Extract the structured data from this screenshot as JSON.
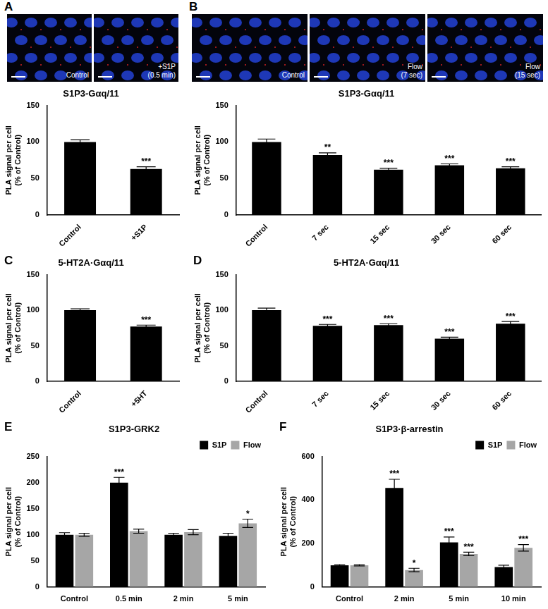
{
  "image_panels": [
    {
      "panel": "A",
      "images": [
        {
          "caption": [
            "Control"
          ]
        },
        {
          "caption": [
            "+S1P",
            "(0.5 min)"
          ]
        }
      ]
    },
    {
      "panel": "B",
      "images": [
        {
          "caption": [
            "Control"
          ]
        },
        {
          "caption": [
            "Flow",
            "(7 sec)"
          ]
        },
        {
          "caption": [
            "Flow",
            "(15 sec)"
          ]
        }
      ]
    }
  ],
  "chart_data": [
    {
      "type": "bar",
      "title": "S1P3-Gαq/11",
      "y_label": [
        "PLA signal per cell",
        "(% of Control)"
      ],
      "categories": [
        "Control",
        "+S1P"
      ],
      "values": [
        100,
        63
      ],
      "errors": [
        3,
        3
      ],
      "significance": [
        null,
        "***"
      ],
      "color": "#000000",
      "ylim": [
        0,
        150
      ],
      "yticks": [
        0,
        50,
        100,
        150
      ],
      "grid": false
    },
    {
      "type": "bar",
      "title": "S1P3-Gαq/11",
      "y_label": [
        "PLA signal per cell",
        "(% of Control)"
      ],
      "categories": [
        "Control",
        "7 sec",
        "15 sec",
        "30 sec",
        "60 sec"
      ],
      "values": [
        100,
        82,
        62,
        68,
        64
      ],
      "errors": [
        4,
        3,
        2,
        2,
        2
      ],
      "significance": [
        null,
        "**",
        "***",
        "***",
        "***"
      ],
      "color": "#000000",
      "ylim": [
        0,
        150
      ],
      "yticks": [
        0,
        50,
        100,
        150
      ],
      "grid": false
    },
    {
      "type": "bar",
      "panel": "C",
      "title": "5-HT2A·Gαq/11",
      "y_label": [
        "PLA signal per cell",
        "(% of Control)"
      ],
      "categories": [
        "Control",
        "+5HT"
      ],
      "values": [
        100,
        77
      ],
      "errors": [
        2,
        2
      ],
      "significance": [
        null,
        "***"
      ],
      "color": "#000000",
      "ylim": [
        0,
        150
      ],
      "yticks": [
        0,
        50,
        100,
        150
      ],
      "grid": false
    },
    {
      "type": "bar",
      "panel": "D",
      "title": "5-HT2A·Gαq/11",
      "y_label": [
        "PLA signal per cell",
        "(% of Control)"
      ],
      "categories": [
        "Control",
        "7 sec",
        "15 sec",
        "30 sec",
        "60 sec"
      ],
      "values": [
        100,
        78,
        79,
        60,
        81
      ],
      "errors": [
        3,
        2,
        2,
        2,
        3
      ],
      "significance": [
        null,
        "***",
        "***",
        "***",
        "***"
      ],
      "color": "#000000",
      "ylim": [
        0,
        150
      ],
      "yticks": [
        0,
        50,
        100,
        150
      ],
      "grid": false
    },
    {
      "type": "bar",
      "panel": "E",
      "title": "S1P3-GRK2",
      "y_label": [
        "PLA signal per cell",
        "(% of Control)"
      ],
      "categories": [
        "Control",
        "0.5 min",
        "2 min",
        "5 min"
      ],
      "series": [
        {
          "name": "S1P",
          "color": "#000000",
          "values": [
            100,
            200,
            100,
            98
          ],
          "errors": [
            4,
            10,
            3,
            5
          ],
          "significance": [
            null,
            "***",
            null,
            null
          ]
        },
        {
          "name": "Flow",
          "color": "#a6a6a6",
          "values": [
            100,
            107,
            105,
            122
          ],
          "errors": [
            3,
            4,
            5,
            8
          ],
          "significance": [
            null,
            null,
            null,
            "*"
          ]
        }
      ],
      "legend": "upper right",
      "ylim": [
        0,
        250
      ],
      "yticks": [
        0,
        50,
        100,
        150,
        200,
        250
      ],
      "grid": false
    },
    {
      "type": "bar",
      "panel": "F",
      "title": "S1P3·β-arrestin",
      "y_label": [
        "PLA signal per cell",
        "(% of Control)"
      ],
      "categories": [
        "Control",
        "2 min",
        "5 min",
        "10 min"
      ],
      "series": [
        {
          "name": "S1P",
          "color": "#000000",
          "values": [
            100,
            455,
            205,
            92
          ],
          "errors": [
            3,
            40,
            25,
            8
          ],
          "significance": [
            null,
            "***",
            "***",
            null
          ]
        },
        {
          "name": "Flow",
          "color": "#a6a6a6",
          "values": [
            100,
            78,
            152,
            180
          ],
          "errors": [
            3,
            8,
            8,
            15
          ],
          "significance": [
            null,
            "*",
            "***",
            "***"
          ]
        }
      ],
      "legend": "upper right",
      "ylim": [
        0,
        600
      ],
      "yticks": [
        0,
        200,
        400,
        600
      ],
      "grid": false
    }
  ]
}
